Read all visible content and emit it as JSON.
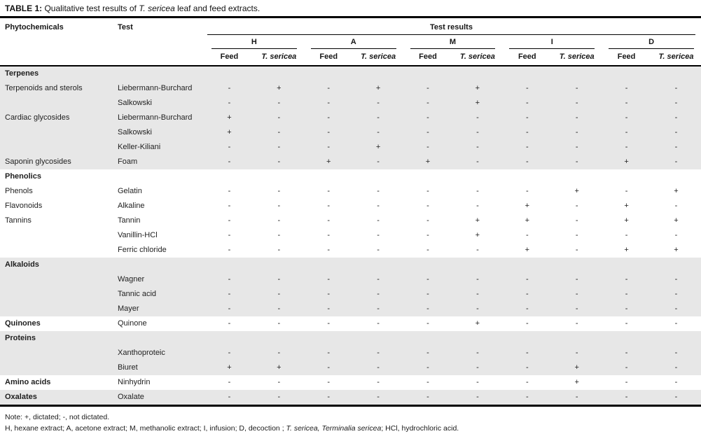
{
  "title": {
    "parts": [
      {
        "text": "TABLE 1: ",
        "bold": true
      },
      {
        "text": "Qualitative test results of "
      },
      {
        "text": "T. sericea",
        "italic": true
      },
      {
        "text": " leaf and feed extracts."
      }
    ]
  },
  "header": {
    "phytochemicals": "Phytochemicals",
    "test": "Test",
    "test_results": "Test results",
    "groups": [
      "H",
      "A",
      "M",
      "I",
      "D"
    ],
    "feed_label": "Feed",
    "sericea_label": "T. sericea"
  },
  "rows": [
    {
      "type": "section",
      "label": "Terpenes",
      "shade": true
    },
    {
      "phyto": "Terpenoids and sterols",
      "test": "Liebermann-Burchard",
      "values": [
        "-",
        "+",
        "-",
        "+",
        "-",
        "+",
        "-",
        "-",
        "-",
        "-"
      ],
      "shade": true
    },
    {
      "phyto": "",
      "test": "Salkowski",
      "values": [
        "-",
        "-",
        "-",
        "-",
        "-",
        "+",
        "-",
        "-",
        "-",
        "-"
      ],
      "shade": true
    },
    {
      "phyto": "Cardiac glycosides",
      "test": "Liebermann-Burchard",
      "values": [
        "+",
        "-",
        "-",
        "-",
        "-",
        "-",
        "-",
        "-",
        "-",
        "-"
      ],
      "shade": true
    },
    {
      "phyto": "",
      "test": "Salkowski",
      "values": [
        "+",
        "-",
        "-",
        "-",
        "-",
        "-",
        "-",
        "-",
        "-",
        "-"
      ],
      "shade": true
    },
    {
      "phyto": "",
      "test": "Keller-Kiliani",
      "values": [
        "-",
        "-",
        "-",
        "+",
        "-",
        "-",
        "-",
        "-",
        "-",
        "-"
      ],
      "shade": true
    },
    {
      "phyto": "Saponin glycosides",
      "test": "Foam",
      "values": [
        "-",
        "-",
        "+",
        "-",
        "+",
        "-",
        "-",
        "-",
        "+",
        "-"
      ],
      "shade": true
    },
    {
      "type": "section",
      "label": "Phenolics",
      "shade": false
    },
    {
      "phyto": "Phenols",
      "test": "Gelatin",
      "values": [
        "-",
        "-",
        "-",
        "-",
        "-",
        "-",
        "-",
        "+",
        "-",
        "+"
      ],
      "shade": false
    },
    {
      "phyto": "Flavonoids",
      "test": "Alkaline",
      "values": [
        "-",
        "-",
        "-",
        "-",
        "-",
        "-",
        "+",
        "-",
        "+",
        "-"
      ],
      "shade": false
    },
    {
      "phyto": "Tannins",
      "test": "Tannin",
      "values": [
        "-",
        "-",
        "-",
        "-",
        "-",
        "+",
        "+",
        "-",
        "+",
        "+"
      ],
      "shade": false
    },
    {
      "phyto": "",
      "test": "Vanillin-HCl",
      "values": [
        "-",
        "-",
        "-",
        "-",
        "-",
        "+",
        "-",
        "-",
        "-",
        "-"
      ],
      "shade": false
    },
    {
      "phyto": "",
      "test": "Ferric chloride",
      "values": [
        "-",
        "-",
        "-",
        "-",
        "-",
        "-",
        "+",
        "-",
        "+",
        "+"
      ],
      "shade": false
    },
    {
      "type": "section",
      "label": "Alkaloids",
      "shade": true
    },
    {
      "phyto": "",
      "test": "Wagner",
      "values": [
        "-",
        "-",
        "-",
        "-",
        "-",
        "-",
        "-",
        "-",
        "-",
        "-"
      ],
      "shade": true
    },
    {
      "phyto": "",
      "test": "Tannic acid",
      "values": [
        "-",
        "-",
        "-",
        "-",
        "-",
        "-",
        "-",
        "-",
        "-",
        "-"
      ],
      "shade": true
    },
    {
      "phyto": "",
      "test": "Mayer",
      "values": [
        "-",
        "-",
        "-",
        "-",
        "-",
        "-",
        "-",
        "-",
        "-",
        "-"
      ],
      "shade": true
    },
    {
      "phyto": "Quinones",
      "test": "Quinone",
      "values": [
        "-",
        "-",
        "-",
        "-",
        "-",
        "+",
        "-",
        "-",
        "-",
        "-"
      ],
      "shade": false,
      "bold": true
    },
    {
      "type": "section",
      "label": "Proteins",
      "shade": true
    },
    {
      "phyto": "",
      "test": "Xanthoproteic",
      "values": [
        "-",
        "-",
        "-",
        "-",
        "-",
        "-",
        "-",
        "-",
        "-",
        "-"
      ],
      "shade": true
    },
    {
      "phyto": "",
      "test": "Biuret",
      "values": [
        "+",
        "+",
        "-",
        "-",
        "-",
        "-",
        "-",
        "+",
        "-",
        "-"
      ],
      "shade": true
    },
    {
      "phyto": "Amino acids",
      "test": "Ninhydrin",
      "values": [
        "-",
        "-",
        "-",
        "-",
        "-",
        "-",
        "-",
        "+",
        "-",
        "-"
      ],
      "shade": false,
      "bold": true
    },
    {
      "phyto": "Oxalates",
      "test": "Oxalate",
      "values": [
        "-",
        "-",
        "-",
        "-",
        "-",
        "-",
        "-",
        "-",
        "-",
        "-"
      ],
      "shade": true,
      "bold": true
    }
  ],
  "notes": {
    "line1": "Note: +, dictated; -, not dictated.",
    "line2_parts": [
      {
        "text": "H, hexane extract; A, acetone extract; M, methanolic extract; I, infusion; D, decoction ; "
      },
      {
        "text": "T. sericea, Terminalia sericea",
        "italic": true
      },
      {
        "text": "; HCl, hydrochloric acid."
      }
    ]
  },
  "colors": {
    "band": "#e7e7e7",
    "text": "#1f1f1f",
    "rule": "#000000"
  }
}
